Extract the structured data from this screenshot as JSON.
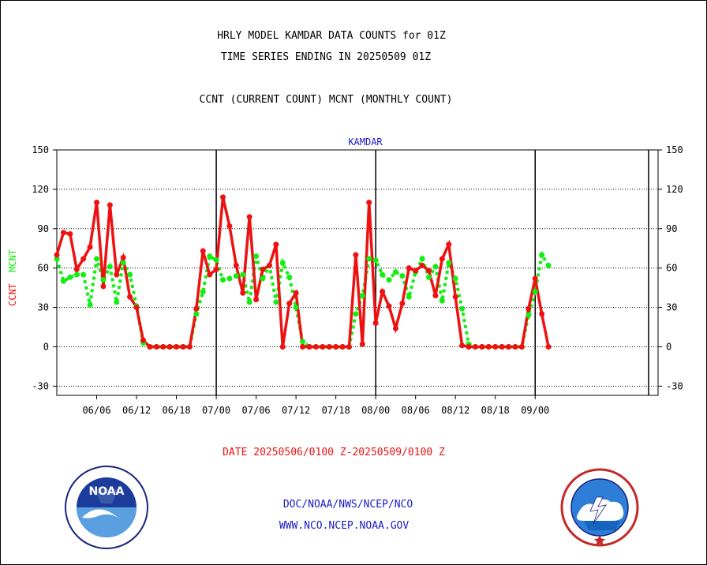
{
  "header": {
    "title_line1": "HRLY MODEL KAMDAR DATA COUNTS for 01Z",
    "title_line2": "TIME SERIES ENDING IN 20250509 01Z",
    "title_line3": "CCNT (CURRENT COUNT) MCNT (MONTHLY COUNT)"
  },
  "footer": {
    "date_range": "DATE 20250506/0100 Z-20250509/0100 Z",
    "link1": "DOC/NOAA/NWS/NCEP/NCO",
    "link2": "WWW.NCO.NCEP.NOAA.GOV"
  },
  "colors": {
    "ccnt": "#ee1111",
    "mcnt": "#11ee11",
    "title_blue": "#1a1ac8"
  },
  "logos": {
    "noaa": "noaa-logo",
    "nws": "nws-logo",
    "noaa_text": "NOAA"
  },
  "chart_data": {
    "type": "line",
    "title": "KAMDAR",
    "ylabel_ccnt": "CCNT",
    "ylabel_mcnt": "MCNT",
    "ylim": [
      -37,
      150
    ],
    "yticks": [
      -30,
      0,
      30,
      60,
      90,
      120,
      150
    ],
    "xlim": [
      0,
      90.5
    ],
    "xticks": [
      {
        "x": 6,
        "label": "06/06"
      },
      {
        "x": 12,
        "label": "06/12"
      },
      {
        "x": 18,
        "label": "06/18"
      },
      {
        "x": 24,
        "label": "07/00"
      },
      {
        "x": 30,
        "label": "07/06"
      },
      {
        "x": 36,
        "label": "07/12"
      },
      {
        "x": 42,
        "label": "07/18"
      },
      {
        "x": 48,
        "label": "08/00"
      },
      {
        "x": 54,
        "label": "08/06"
      },
      {
        "x": 60,
        "label": "08/12"
      },
      {
        "x": 66,
        "label": "08/18"
      },
      {
        "x": 72,
        "label": "09/00"
      }
    ],
    "day_dividers": [
      24,
      48,
      72
    ],
    "grid": "horizontal-dotted",
    "series": [
      {
        "name": "CCNT",
        "values": [
          70,
          87,
          86,
          59,
          67,
          76,
          110,
          46,
          108,
          55,
          68,
          38,
          30,
          5,
          0,
          0,
          0,
          0,
          0,
          0,
          0,
          29,
          73,
          55,
          59,
          114,
          92,
          62,
          41,
          99,
          36,
          59,
          62,
          78,
          0,
          33,
          41,
          0,
          0,
          0,
          0,
          0,
          0,
          0,
          0,
          70,
          2,
          110,
          18,
          42,
          31,
          14,
          33,
          60,
          58,
          62,
          58,
          39,
          67,
          78,
          38,
          1,
          0,
          0,
          0,
          0,
          0,
          0,
          0,
          0,
          0,
          29,
          52,
          25,
          0
        ]
      },
      {
        "name": "MCNT",
        "values": [
          67,
          50,
          53,
          55,
          55,
          32,
          67,
          51,
          61,
          34,
          64,
          55,
          31,
          3,
          0,
          0,
          0,
          0,
          0,
          0,
          0,
          25,
          42,
          69,
          66,
          51,
          52,
          54,
          55,
          34,
          69,
          52,
          62,
          34,
          64,
          53,
          30,
          4,
          0,
          0,
          0,
          0,
          0,
          0,
          0,
          25,
          39,
          67,
          66,
          55,
          51,
          57,
          54,
          38,
          57,
          67,
          53,
          61,
          35,
          64,
          52,
          29,
          2,
          0,
          0,
          0,
          0,
          0,
          0,
          0,
          0,
          24,
          42,
          70,
          62
        ]
      }
    ]
  }
}
